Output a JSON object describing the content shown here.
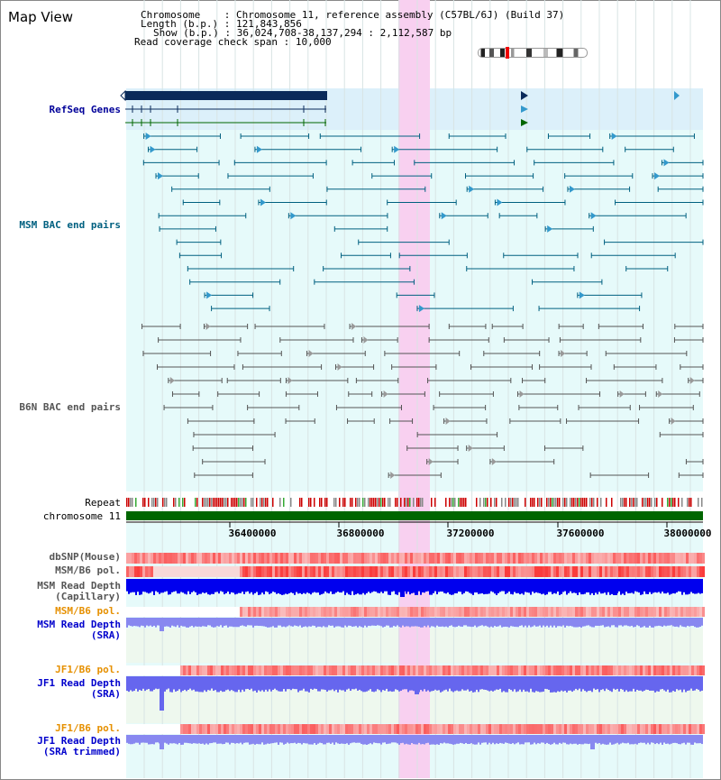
{
  "view_title": "Map View",
  "info": {
    "chromosome_label": "Chromosome",
    "chromosome_value": "Chromosome 11, reference assembly (C57BL/6J) (Build 37)",
    "length_label": "Length (b.p.)",
    "length_value": "121,843,856",
    "show_label": "Show (b.p.)",
    "show_value": "36,024,708-38,137,294 : 2,112,587 bp",
    "coverage_label": "Read coverage check span",
    "coverage_value": "10,000"
  },
  "tracks": {
    "refseq": "RefSeq Genes",
    "msm_bac": "MSM BAC end pairs",
    "b6n_bac": "B6N BAC end pairs",
    "repeat": "Repeat",
    "chromosome": "chromosome 11",
    "dbsnp": "dbSNP(Mouse)",
    "msm_b6_pol": "MSM/B6 pol.",
    "msm_read_depth_cap_1": "MSM Read Depth",
    "msm_read_depth_cap_2": "(Capillary)",
    "msm_b6_pol_sra": "MSM/B6 pol.",
    "msm_read_depth_sra_1": "MSM Read Depth",
    "msm_read_depth_sra_2": "(SRA)",
    "jf1_b6_pol": "JF1/B6 pol.",
    "jf1_read_depth_1": "JF1 Read Depth",
    "jf1_read_depth_2": "(SRA)",
    "jf1_b6_pol_2": "JF1/B6 pol.",
    "jf1_read_depth_trim_1": "JF1 Read Depth",
    "jf1_read_depth_trim_2": "(SRA trimmed)"
  },
  "axis_ticks": [
    "36400000",
    "36800000",
    "37200000",
    "37600000",
    "38000000"
  ],
  "colors": {
    "refseq_label": "#000099",
    "msm_bac_label": "#006080",
    "b6n_bac_label": "#555555",
    "pol_orange": "#e69000",
    "depth_blue": "#0000cc",
    "highlight_pink": "#f8d0f0"
  }
}
